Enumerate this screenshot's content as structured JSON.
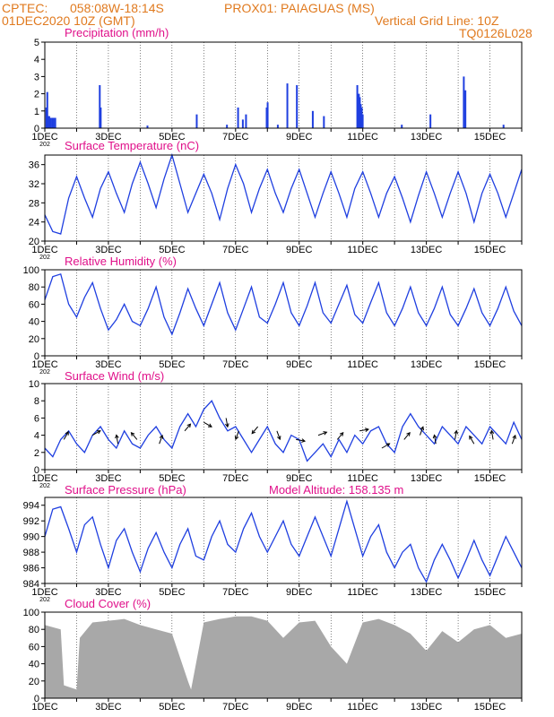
{
  "header": {
    "source": "CPTEC:",
    "coords": "058:08W-18:14S",
    "station": "PROX01: PAIAGUAS (MS)",
    "run": "01DEC2020 10Z (GMT)",
    "grid": "Vertical Grid Line: 10Z",
    "code": "TQ0126L028"
  },
  "colors": {
    "header": "#e07a1f",
    "title": "#e0108a",
    "line": "#1f3fe0",
    "cloud": "#a8a8a8",
    "arrow": "#000000"
  },
  "x_tick_labels": [
    "1DEC",
    "3DEC",
    "5DEC",
    "7DEC",
    "9DEC",
    "11DEC",
    "13DEC",
    "15DEC"
  ],
  "x_tick_stub": "202",
  "chart_data": [
    {
      "type": "bar",
      "title": "Precipitation (mm/h)",
      "ylim": [
        0,
        5
      ],
      "yticks": [
        0,
        1,
        2,
        3,
        4,
        5
      ],
      "x_days": [
        0.02,
        0.05,
        0.08,
        0.11,
        0.15,
        0.2,
        0.25,
        0.3,
        1.7,
        1.73,
        3.2,
        4.75,
        5.7,
        6.05,
        6.2,
        6.3,
        6.95,
        6.98,
        7.3,
        7.6,
        7.9,
        8.4,
        8.75,
        9.8,
        9.85,
        9.88,
        9.91,
        9.94,
        9.97,
        11.2,
        12.1,
        13.15,
        13.2,
        14.4
      ],
      "values": [
        1.2,
        2.1,
        0.7,
        0.7,
        0.6,
        0.6,
        0.6,
        0.6,
        2.5,
        1.2,
        0.15,
        0.8,
        0.2,
        1.2,
        0.5,
        0.8,
        1.2,
        1.5,
        0.2,
        2.6,
        2.5,
        1.0,
        0.7,
        2.5,
        2.0,
        1.8,
        1.4,
        1.2,
        0.8,
        0.2,
        0.8,
        3.0,
        2.2,
        0.2
      ]
    },
    {
      "type": "line",
      "title": "Surface Temperature (nC)",
      "ylim": [
        20,
        38
      ],
      "yticks": [
        20,
        24,
        28,
        32,
        36
      ],
      "x_days": [
        0,
        0.25,
        0.5,
        0.75,
        1,
        1.25,
        1.5,
        1.75,
        2,
        2.25,
        2.5,
        2.75,
        3,
        3.25,
        3.5,
        3.75,
        4,
        4.25,
        4.5,
        4.75,
        5,
        5.25,
        5.5,
        5.75,
        6,
        6.25,
        6.5,
        6.75,
        7,
        7.25,
        7.5,
        7.75,
        8,
        8.25,
        8.5,
        8.75,
        9,
        9.25,
        9.5,
        9.75,
        10,
        10.25,
        10.5,
        10.75,
        11,
        11.25,
        11.5,
        11.75,
        12,
        12.25,
        12.5,
        12.75,
        13,
        13.25,
        13.5,
        13.75,
        14,
        14.25,
        14.5,
        14.75,
        15
      ],
      "values": [
        25.5,
        22,
        21.5,
        29,
        33.5,
        29,
        25,
        31,
        34.5,
        30,
        26,
        32,
        36.5,
        32,
        27,
        33,
        38,
        32,
        26,
        30,
        34,
        30,
        24.5,
        31,
        36,
        32,
        26,
        31,
        35,
        30,
        26,
        31,
        35,
        30,
        25,
        30,
        34.5,
        30,
        25,
        31,
        34.5,
        30,
        25,
        30,
        33.5,
        29,
        24,
        29.5,
        34.5,
        30,
        25,
        30,
        34.5,
        30,
        24,
        30,
        34,
        30,
        25,
        30,
        35
      ]
    },
    {
      "type": "line",
      "title": "Relative Humidity (%)",
      "ylim": [
        0,
        100
      ],
      "yticks": [
        0,
        20,
        40,
        60,
        80,
        100
      ],
      "x_days": [
        0,
        0.25,
        0.5,
        0.75,
        1,
        1.25,
        1.5,
        1.75,
        2,
        2.25,
        2.5,
        2.75,
        3,
        3.25,
        3.5,
        3.75,
        4,
        4.25,
        4.5,
        4.75,
        5,
        5.25,
        5.5,
        5.75,
        6,
        6.25,
        6.5,
        6.75,
        7,
        7.25,
        7.5,
        7.75,
        8,
        8.25,
        8.5,
        8.75,
        9,
        9.25,
        9.5,
        9.75,
        10,
        10.25,
        10.5,
        10.75,
        11,
        11.25,
        11.5,
        11.75,
        12,
        12.25,
        12.5,
        12.75,
        13,
        13.25,
        13.5,
        13.75,
        14,
        14.25,
        14.5,
        14.75,
        15
      ],
      "values": [
        65,
        92,
        95,
        60,
        45,
        68,
        85,
        55,
        30,
        42,
        60,
        40,
        35,
        55,
        80,
        45,
        25,
        50,
        78,
        55,
        35,
        60,
        85,
        50,
        30,
        55,
        80,
        45,
        38,
        60,
        85,
        50,
        35,
        58,
        85,
        50,
        38,
        60,
        82,
        48,
        38,
        62,
        85,
        50,
        35,
        55,
        80,
        50,
        35,
        55,
        80,
        48,
        35,
        55,
        78,
        50,
        35,
        55,
        80,
        52,
        35
      ]
    },
    {
      "type": "line",
      "title": "Surface Wind (m/s)",
      "ylim": [
        0,
        10
      ],
      "yticks": [
        0,
        2,
        4,
        6,
        8,
        10
      ],
      "x_days": [
        0,
        0.25,
        0.5,
        0.75,
        1,
        1.25,
        1.5,
        1.75,
        2,
        2.25,
        2.5,
        2.75,
        3,
        3.25,
        3.5,
        3.75,
        4,
        4.25,
        4.5,
        4.75,
        5,
        5.25,
        5.5,
        5.75,
        6,
        6.25,
        6.5,
        6.75,
        7,
        7.25,
        7.5,
        7.75,
        8,
        8.25,
        8.5,
        8.75,
        9,
        9.25,
        9.5,
        9.75,
        10,
        10.25,
        10.5,
        10.75,
        11,
        11.25,
        11.5,
        11.75,
        12,
        12.25,
        12.5,
        12.75,
        13,
        13.25,
        13.5,
        13.75,
        14,
        14.25,
        14.5,
        14.75,
        15
      ],
      "values": [
        2.5,
        1.5,
        3.5,
        4.5,
        3.0,
        2.0,
        4.0,
        5.0,
        3.5,
        2.5,
        4.5,
        3.0,
        2.5,
        4.0,
        5.0,
        3.5,
        2.5,
        5.0,
        6.5,
        5.0,
        7.0,
        8.0,
        6.0,
        4.5,
        5.0,
        3.5,
        2.0,
        3.5,
        5.0,
        3.0,
        2.0,
        4.0,
        3.5,
        1.0,
        2.0,
        3.0,
        1.5,
        3.5,
        2.0,
        4.0,
        3.0,
        4.5,
        5.0,
        3.0,
        2.0,
        5.0,
        6.5,
        5.0,
        4.0,
        3.0,
        5.0,
        4.0,
        3.0,
        5.0,
        4.0,
        3.0,
        5.0,
        4.0,
        3.0,
        5.5,
        3.5
      ]
    },
    {
      "type": "line",
      "title": "Surface Pressure (hPa)",
      "subtitle": "Model Altitude: 158.135 m",
      "ylim": [
        984,
        995
      ],
      "yticks": [
        984,
        986,
        988,
        990,
        992,
        994
      ],
      "x_days": [
        0,
        0.25,
        0.5,
        0.75,
        1,
        1.25,
        1.5,
        1.75,
        2,
        2.25,
        2.5,
        2.75,
        3,
        3.25,
        3.5,
        3.75,
        4,
        4.25,
        4.5,
        4.75,
        5,
        5.25,
        5.5,
        5.75,
        6,
        6.25,
        6.5,
        6.75,
        7,
        7.25,
        7.5,
        7.75,
        8,
        8.25,
        8.5,
        8.75,
        9,
        9.25,
        9.5,
        9.75,
        10,
        10.25,
        10.5,
        10.75,
        11,
        11.25,
        11.5,
        11.75,
        12,
        12.25,
        12.5,
        12.75,
        13,
        13.25,
        13.5,
        13.75,
        14,
        14.25,
        14.5,
        14.75,
        15
      ],
      "values": [
        990,
        993.5,
        993.8,
        991,
        988,
        991.5,
        992.5,
        989,
        986,
        989.5,
        991,
        988,
        985.5,
        988.5,
        990.5,
        988,
        986,
        989,
        991,
        987.5,
        987,
        990,
        992,
        989,
        988,
        991,
        993,
        990,
        988,
        990,
        992,
        989,
        987.5,
        990,
        992.5,
        990,
        987.5,
        991,
        994.5,
        991,
        987.5,
        990,
        991.5,
        988,
        986,
        988,
        989,
        986,
        984.2,
        987,
        989,
        987,
        984.7,
        987,
        989.5,
        987,
        985,
        987.5,
        990,
        988,
        986
      ]
    },
    {
      "type": "area",
      "title": "Cloud Cover (%)",
      "ylim": [
        0,
        100
      ],
      "yticks": [
        0,
        20,
        40,
        60,
        80,
        100
      ],
      "x_days": [
        0,
        0.5,
        0.6,
        1.0,
        1.1,
        1.5,
        2.0,
        2.5,
        3.0,
        3.5,
        4.0,
        4.5,
        4.6,
        5.0,
        5.5,
        6.0,
        6.5,
        7.0,
        7.5,
        8.0,
        8.5,
        9.0,
        9.5,
        10.0,
        10.5,
        11.0,
        11.5,
        12.0,
        12.5,
        13.0,
        13.5,
        14.0,
        14.5,
        15.0
      ],
      "values": [
        85,
        80,
        15,
        10,
        70,
        88,
        90,
        92,
        85,
        80,
        75,
        20,
        10,
        88,
        92,
        95,
        95,
        90,
        70,
        88,
        90,
        60,
        40,
        88,
        92,
        85,
        75,
        55,
        78,
        65,
        80,
        85,
        70,
        75
      ]
    }
  ],
  "wind_arrows": {
    "label": "wind vectors",
    "x_days": [
      0.6,
      1.5,
      2.3,
      2.9,
      3.6,
      4.4,
      5.0,
      5.7,
      6.1,
      6.7,
      7.3,
      7.9,
      8.6,
      9.2,
      9.9,
      10.6,
      11.3,
      11.8,
      12.3,
      12.9,
      13.5,
      14.1,
      14.7
    ],
    "speeds": [
      3.5,
      4.0,
      3.0,
      3.5,
      3.0,
      4.5,
      5.5,
      6.0,
      4.5,
      5.0,
      4.5,
      3.5,
      4.0,
      3.5,
      4.5,
      2.5,
      3.5,
      4.0,
      3.0,
      3.5,
      3.0,
      3.5,
      3.0
    ],
    "directions_deg": [
      30,
      60,
      350,
      320,
      20,
      40,
      120,
      170,
      200,
      220,
      160,
      100,
      70,
      40,
      80,
      60,
      40,
      20,
      350,
      10,
      330,
      350,
      20
    ]
  }
}
